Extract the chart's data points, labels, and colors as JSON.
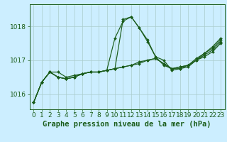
{
  "title": "Graphe pression niveau de la mer (hPa)",
  "bg_color": "#cceeff",
  "grid_color": "#aacccc",
  "line_color": "#1a5c1a",
  "xlim": [
    -0.5,
    23.5
  ],
  "ylim": [
    1015.55,
    1018.65
  ],
  "yticks": [
    1016,
    1017,
    1018
  ],
  "xticks": [
    0,
    1,
    2,
    3,
    4,
    5,
    6,
    7,
    8,
    9,
    10,
    11,
    12,
    13,
    14,
    15,
    16,
    17,
    18,
    19,
    20,
    21,
    22,
    23
  ],
  "series": [
    [
      1015.75,
      1016.35,
      1016.65,
      1016.65,
      1016.5,
      1016.55,
      1016.6,
      1016.65,
      1016.65,
      1016.7,
      1016.75,
      1018.2,
      1018.28,
      1017.95,
      1017.55,
      1017.1,
      1016.85,
      1016.75,
      1016.75,
      1016.8,
      1017.0,
      1017.2,
      1017.35,
      1017.6
    ],
    [
      1015.75,
      1016.35,
      1016.65,
      1016.5,
      1016.45,
      1016.5,
      1016.6,
      1016.65,
      1016.65,
      1016.7,
      1016.75,
      1016.8,
      1016.85,
      1016.9,
      1017.0,
      1017.05,
      1016.9,
      1016.75,
      1016.8,
      1016.85,
      1017.0,
      1017.15,
      1017.3,
      1017.55
    ],
    [
      1015.75,
      1016.35,
      1016.65,
      1016.5,
      1016.45,
      1016.5,
      1016.6,
      1016.65,
      1016.65,
      1016.7,
      1017.65,
      1018.15,
      1018.28,
      1017.95,
      1017.6,
      1017.1,
      1017.0,
      1016.7,
      1016.75,
      1016.85,
      1017.05,
      1017.2,
      1017.4,
      1017.65
    ],
    [
      1015.75,
      1016.35,
      1016.65,
      1016.5,
      1016.45,
      1016.5,
      1016.6,
      1016.65,
      1016.65,
      1016.7,
      1016.75,
      1016.8,
      1016.85,
      1016.95,
      1017.0,
      1017.05,
      1016.9,
      1016.75,
      1016.8,
      1016.85,
      1017.0,
      1017.1,
      1017.25,
      1017.5
    ]
  ],
  "xlabel_fontsize": 6.5,
  "ylabel_fontsize": 6.5,
  "title_fontsize": 7.5
}
